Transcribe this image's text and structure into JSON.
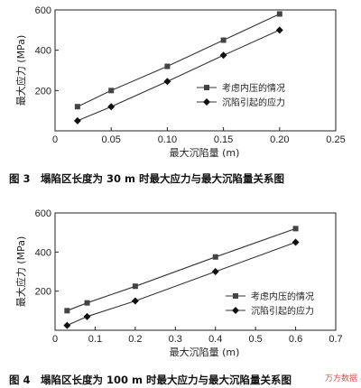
{
  "chart_data": [
    {
      "type": "line",
      "xlabel": "最大沉陷量 (m)",
      "ylabel": "最大应力 (MPa)",
      "xlim": [
        0,
        0.25
      ],
      "ylim": [
        0,
        600
      ],
      "xticks": [
        0,
        0.05,
        0.1,
        0.15,
        0.2,
        0.25
      ],
      "xtick_labels": [
        "0",
        "0.05",
        "0.10",
        "0.15",
        "0.20",
        "0.25"
      ],
      "yticks": [
        200,
        400,
        600
      ],
      "ytick_labels": [
        "200",
        "400",
        "600"
      ],
      "grid": false,
      "legend_position": "right",
      "series": [
        {
          "name": "考虑内压的情况",
          "marker": "square",
          "x": [
            0.02,
            0.05,
            0.1,
            0.15,
            0.2
          ],
          "y": [
            120,
            200,
            320,
            450,
            580
          ]
        },
        {
          "name": "沉陷引起的应力",
          "marker": "diamond",
          "x": [
            0.02,
            0.05,
            0.1,
            0.15,
            0.2
          ],
          "y": [
            50,
            120,
            245,
            375,
            500
          ]
        }
      ]
    },
    {
      "type": "line",
      "xlabel": "最大沉陷量 (m)",
      "ylabel": "最大应力 (MPa)",
      "xlim": [
        0,
        0.7
      ],
      "ylim": [
        0,
        600
      ],
      "xticks": [
        0,
        0.1,
        0.2,
        0.3,
        0.4,
        0.5,
        0.6,
        0.7
      ],
      "xtick_labels": [
        "0",
        "0.1",
        "0.2",
        "0.3",
        "0.4",
        "0.5",
        "0.6",
        "0.7"
      ],
      "yticks": [
        200,
        400,
        600
      ],
      "ytick_labels": [
        "200",
        "400",
        "600"
      ],
      "grid": false,
      "legend_position": "right",
      "series": [
        {
          "name": "考虑内压的情况",
          "marker": "square",
          "x": [
            0.03,
            0.08,
            0.2,
            0.4,
            0.6
          ],
          "y": [
            100,
            140,
            225,
            375,
            520
          ]
        },
        {
          "name": "沉陷引起的应力",
          "marker": "diamond",
          "x": [
            0.03,
            0.08,
            0.2,
            0.4,
            0.6
          ],
          "y": [
            25,
            70,
            150,
            300,
            450
          ]
        }
      ]
    }
  ],
  "captions": {
    "fig3": "图 3　塌陷区长度为 30 m 时最大应力与最大沉陷量关系图",
    "fig4": "图 4　塌陷区长度为 100 m 时最大应力与最大沉陷量关系图"
  },
  "watermark": "万方数据"
}
